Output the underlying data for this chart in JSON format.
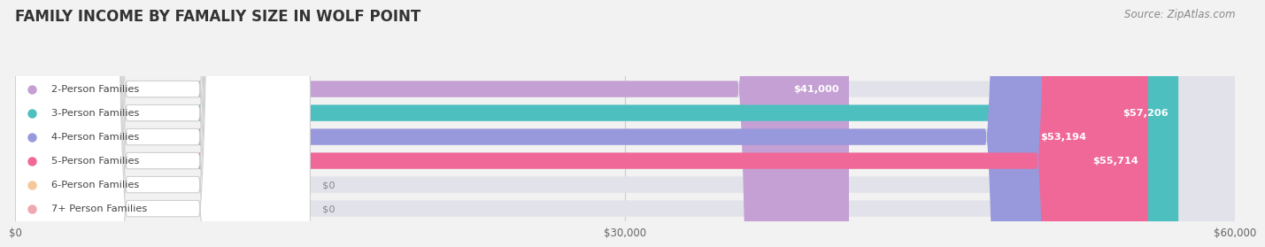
{
  "title": "FAMILY INCOME BY FAMALIY SIZE IN WOLF POINT",
  "source": "Source: ZipAtlas.com",
  "categories": [
    "2-Person Families",
    "3-Person Families",
    "4-Person Families",
    "5-Person Families",
    "6-Person Families",
    "7+ Person Families"
  ],
  "values": [
    41000,
    57206,
    53194,
    55714,
    0,
    0
  ],
  "bar_colors": [
    "#c4a0d4",
    "#4dbfbf",
    "#9898dc",
    "#f06898",
    "#f5c89a",
    "#f0a8b0"
  ],
  "value_labels": [
    "$41,000",
    "$57,206",
    "$53,194",
    "$55,714",
    "$0",
    "$0"
  ],
  "xlim": [
    0,
    60000
  ],
  "xticks": [
    0,
    30000,
    60000
  ],
  "xticklabels": [
    "$0",
    "$30,000",
    "$60,000"
  ],
  "background_color": "#f2f2f2",
  "bar_bg_color": "#e2e2ea",
  "title_fontsize": 12,
  "bar_height": 0.68,
  "source_fontsize": 8.5
}
